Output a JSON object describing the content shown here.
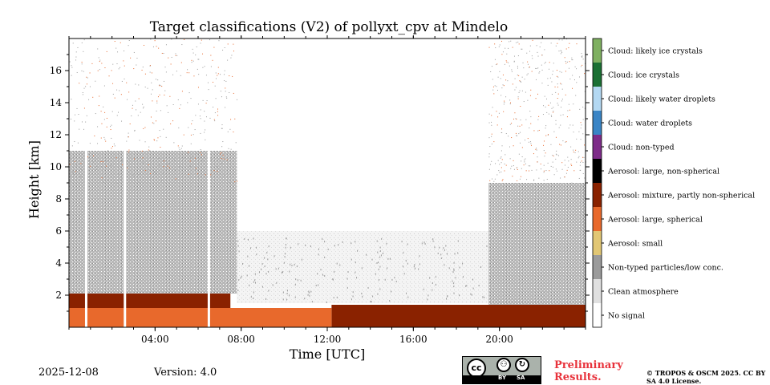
{
  "chart_data": {
    "type": "heatmap",
    "title": "Target classifications (V2) of pollyxt_cpv at Mindelo",
    "xlabel": "Time [UTC]",
    "ylabel": "Height [km]",
    "x_unit": "hours UTC",
    "xlim": [
      0,
      24
    ],
    "ylim": [
      0,
      18
    ],
    "xticks": [
      {
        "value": 4,
        "label": "04:00"
      },
      {
        "value": 8,
        "label": "08:00"
      },
      {
        "value": 12,
        "label": "12:00"
      },
      {
        "value": 16,
        "label": "16:00"
      },
      {
        "value": 20,
        "label": "20:00"
      }
    ],
    "yticks": [
      {
        "value": 2,
        "label": "2"
      },
      {
        "value": 4,
        "label": "4"
      },
      {
        "value": 6,
        "label": "6"
      },
      {
        "value": 8,
        "label": "8"
      },
      {
        "value": 10,
        "label": "10"
      },
      {
        "value": 12,
        "label": "12"
      },
      {
        "value": 14,
        "label": "14"
      },
      {
        "value": 16,
        "label": "16"
      }
    ],
    "legend": [
      {
        "label": "Cloud: likely ice crystals",
        "color": "#7fb061"
      },
      {
        "label": "Cloud: ice crystals",
        "color": "#1b7034"
      },
      {
        "label": "Cloud: likely water droplets",
        "color": "#b3d8f2"
      },
      {
        "label": "Cloud: water droplets",
        "color": "#3a85c6"
      },
      {
        "label": "Cloud: non-typed",
        "color": "#7e2c89"
      },
      {
        "label": "Aerosol: large, non-spherical",
        "color": "#000000"
      },
      {
        "label": "Aerosol: mixture, partly non-spherical",
        "color": "#8a2200"
      },
      {
        "label": "Aerosol: large, spherical",
        "color": "#e8692c"
      },
      {
        "label": "Aerosol: small",
        "color": "#e2c774"
      },
      {
        "label": "Non-typed particles/low conc.",
        "color": "#9b9b9b"
      },
      {
        "label": "Clean atmosphere",
        "color": "#e0e0e0"
      },
      {
        "label": "No signal",
        "color": "#ffffff"
      }
    ],
    "regions": [
      {
        "class": "Aerosol: large, spherical",
        "x": [
          0,
          12.2
        ],
        "y": [
          0,
          1.2
        ]
      },
      {
        "class": "Aerosol: mixture, partly non-spherical",
        "x": [
          0,
          7.5
        ],
        "y": [
          1.2,
          2.1
        ]
      },
      {
        "class": "Aerosol: mixture, partly non-spherical",
        "x": [
          12.2,
          24
        ],
        "y": [
          0,
          1.4
        ]
      },
      {
        "class": "Non-typed particles/low conc.",
        "x": [
          0,
          7.8
        ],
        "y": [
          2.1,
          11
        ]
      },
      {
        "class": "Non-typed particles/low conc.",
        "x": [
          19.5,
          24
        ],
        "y": [
          1.0,
          9
        ]
      },
      {
        "class": "Clean atmosphere",
        "x": [
          7.8,
          19.5
        ],
        "y": [
          1.5,
          6
        ]
      },
      {
        "class": "No signal",
        "x": [
          7.8,
          19.5
        ],
        "y": [
          6,
          18
        ]
      }
    ],
    "data_gaps_hours": [
      0.8,
      2.6,
      6.5
    ]
  },
  "footer": {
    "date": "2025-12-08",
    "version": "Version: 4.0",
    "preliminary": "Preliminary Results.",
    "copyright": "© TROPOS & OSCM 2025. CC BY SA 4.0 License."
  },
  "license_badge": {
    "cc": "cc",
    "by": "BY",
    "sa": "SA"
  }
}
